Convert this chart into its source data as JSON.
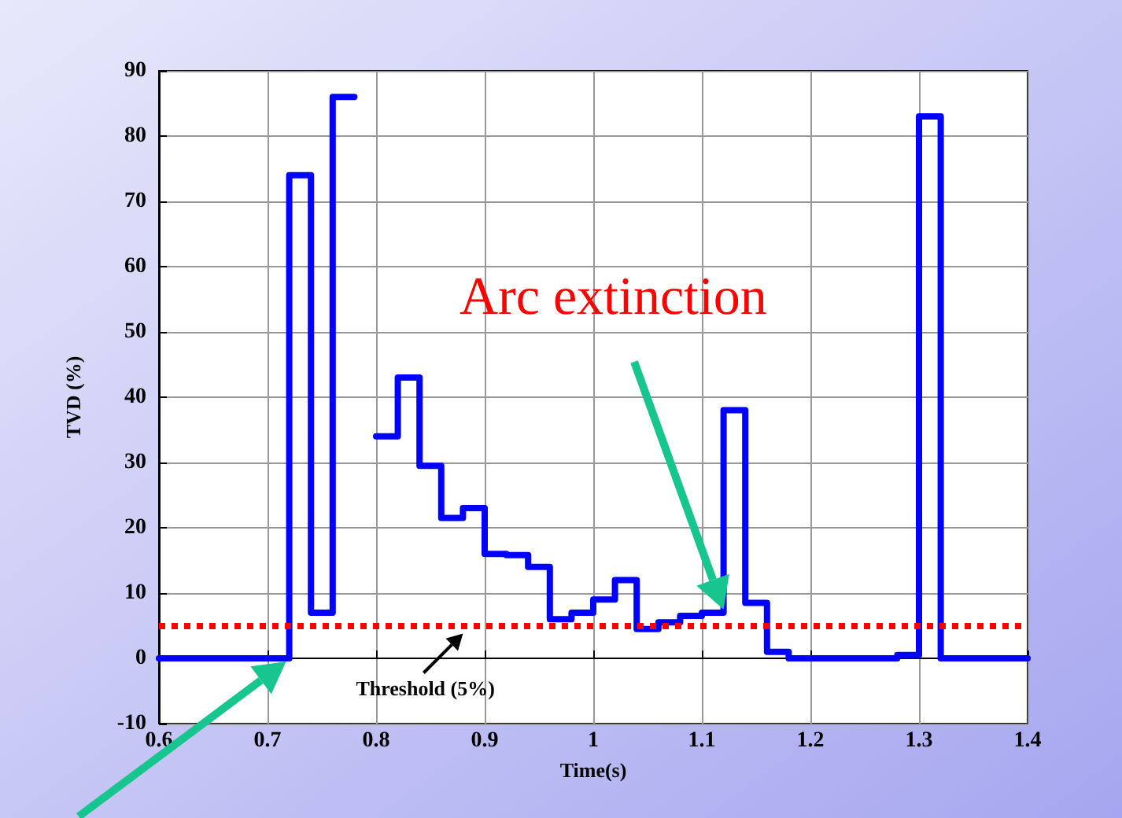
{
  "chart_data": {
    "type": "step",
    "xlabel": "Time(s)",
    "ylabel": "TVD (%)",
    "x": [
      0.6,
      0.72,
      0.74,
      0.76,
      0.78,
      0.8,
      0.82,
      0.84,
      0.86,
      0.88,
      0.9,
      0.92,
      0.94,
      0.96,
      0.98,
      1.0,
      1.02,
      1.04,
      1.06,
      1.08,
      1.1,
      1.12,
      1.14,
      1.16,
      1.18,
      1.28,
      1.3,
      1.32,
      1.4
    ],
    "series": [
      {
        "color": "#0000ff",
        "values": [
          0,
          74,
          7,
          86,
          null,
          34,
          43,
          29.5,
          21.5,
          23,
          16,
          15.8,
          14,
          6,
          7,
          9,
          12,
          4.5,
          5.5,
          6.5,
          7,
          38,
          8.5,
          1,
          0,
          0.5,
          83,
          0,
          0
        ]
      }
    ],
    "xlim": [
      0.6,
      1.4
    ],
    "xticks": [
      0.6,
      0.7,
      0.8,
      0.9,
      1,
      1.1,
      1.2,
      1.3,
      1.4
    ],
    "ylim": [
      -10,
      90
    ],
    "yticks": [
      -10,
      0,
      10,
      20,
      30,
      40,
      50,
      60,
      70,
      80,
      90
    ],
    "grid": true,
    "marker": "none",
    "line_style": "solid",
    "ref_lines": [
      {
        "axis": "y",
        "value": 5,
        "label": "Threshold (5%)",
        "color": "#ff0000",
        "line_style": "dotted"
      }
    ],
    "annotations": [
      "Arc extinction"
    ]
  }
}
